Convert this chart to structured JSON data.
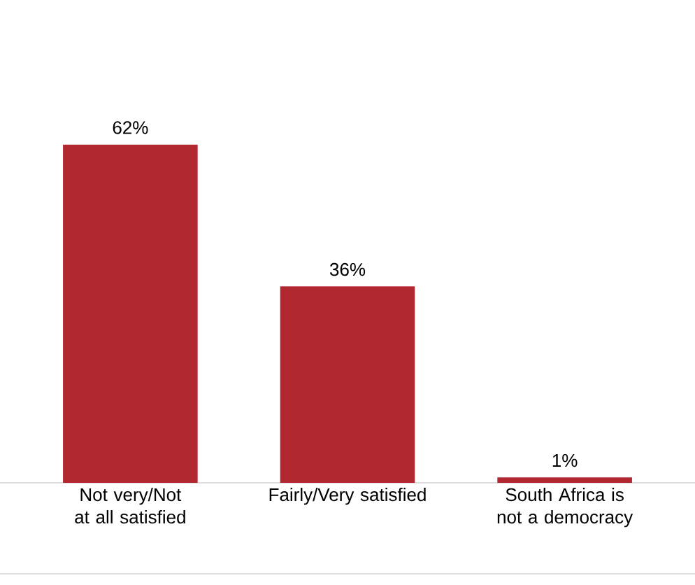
{
  "chart_data": {
    "type": "bar",
    "categories": [
      "Not very/Not at all satisfied",
      "Fairly/Very satisfied",
      "South Africa is not a democracy"
    ],
    "values": [
      62,
      36,
      1
    ],
    "value_labels": [
      "62%",
      "36%",
      "1%"
    ],
    "color": "#b22830"
  }
}
